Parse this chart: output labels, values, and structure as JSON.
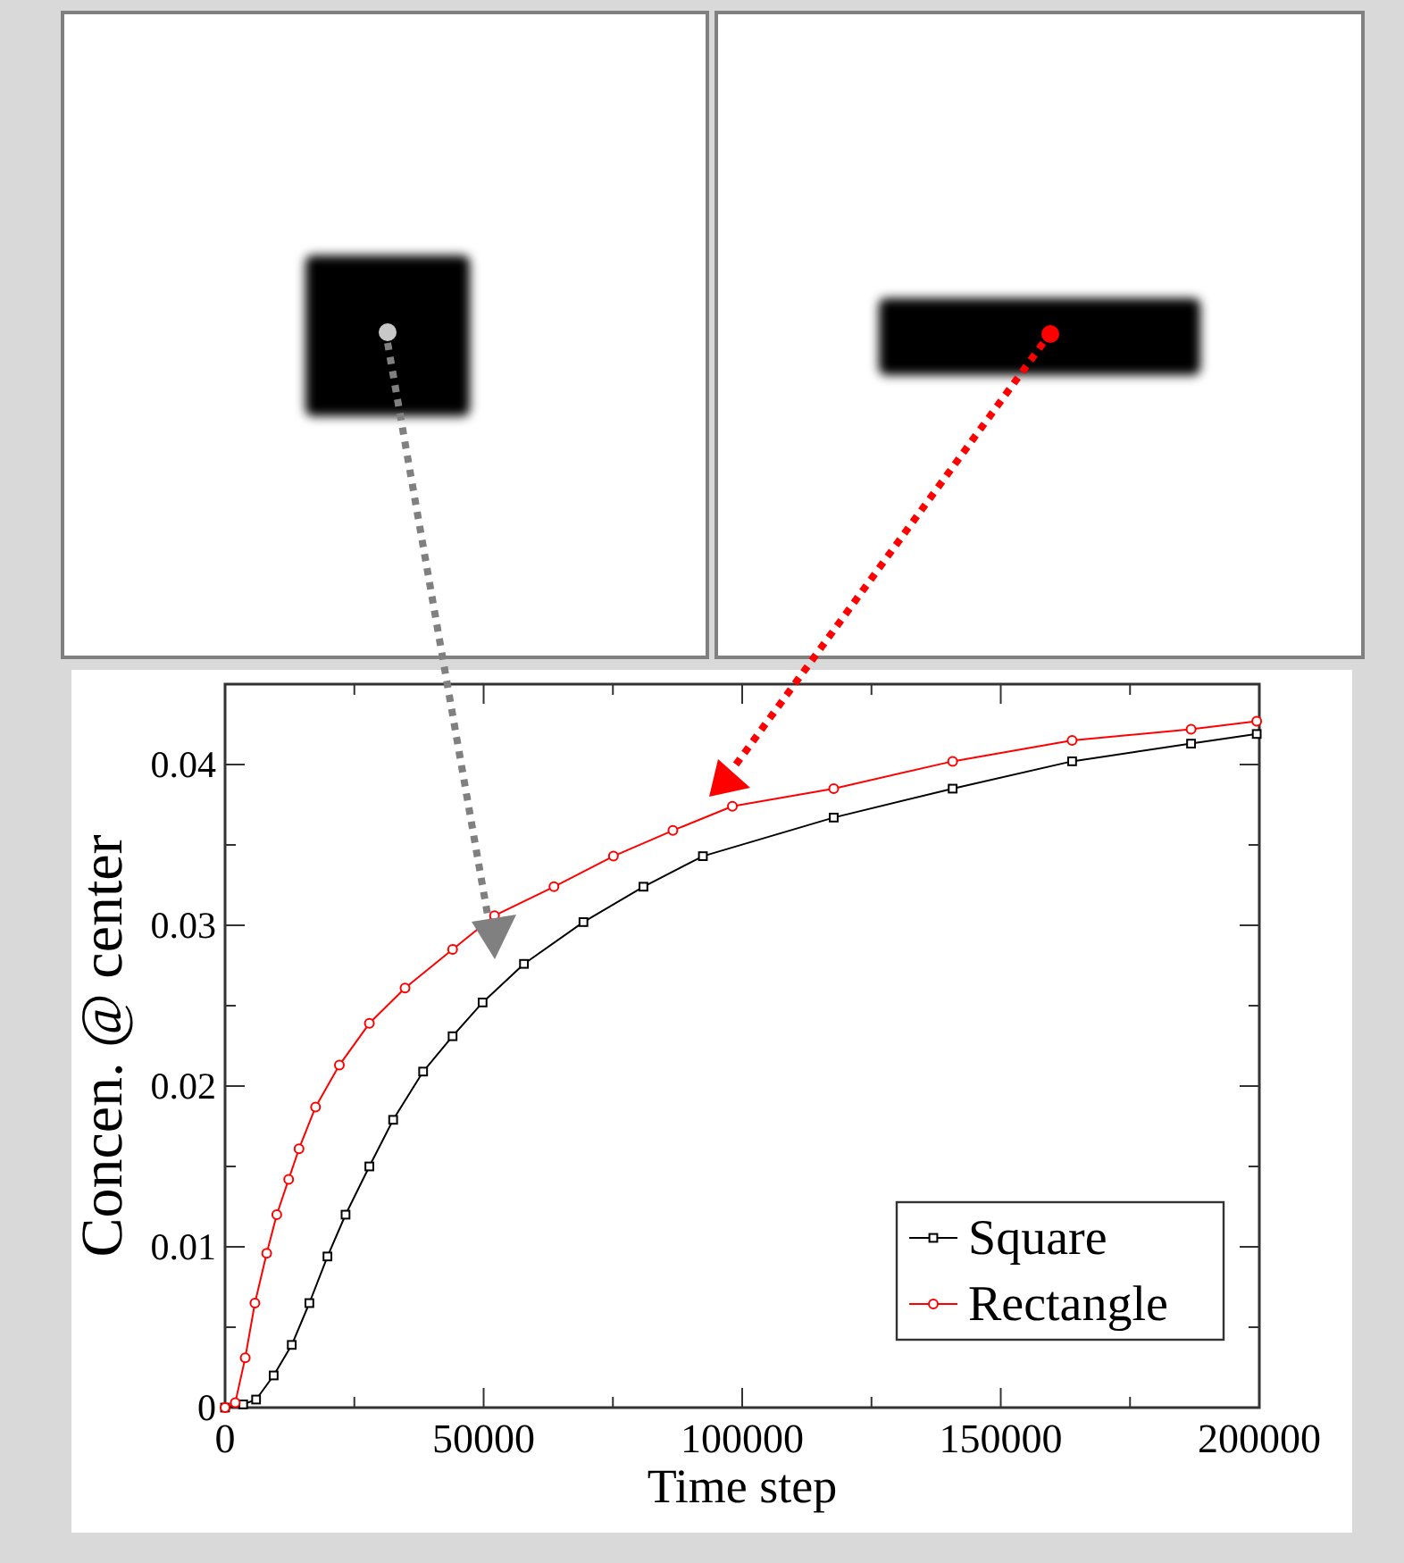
{
  "chart_data": {
    "type": "line",
    "xlabel": "Time step",
    "ylabel": "Concen. @ center",
    "xlim": [
      0,
      200000
    ],
    "ylim": [
      0,
      0.045
    ],
    "xticks": [
      0,
      {
        "value": 25000,
        "label": null
      },
      50000,
      {
        "value": 75000,
        "label": null
      },
      100000,
      {
        "value": 125000,
        "label": null
      },
      150000,
      {
        "value": 175000,
        "label": null
      },
      200000
    ],
    "yticks": [
      0,
      {
        "value": 0.005,
        "label": null
      },
      0.01,
      {
        "value": 0.015,
        "label": null
      },
      0.02,
      {
        "value": 0.025,
        "label": null
      },
      0.03,
      {
        "value": 0.035,
        "label": null
      },
      0.04
    ],
    "grid": false,
    "legend": "bottom right",
    "line_style": "solid",
    "series": [
      {
        "name": "Square",
        "color": "#000000",
        "marker": "square",
        "x": [
          0,
          3500,
          6000,
          9400,
          12900,
          16300,
          19800,
          23300,
          27900,
          32500,
          38300,
          44000,
          49800,
          57800,
          69300,
          80900,
          92400,
          117700,
          140700,
          163800,
          186800,
          199500
        ],
        "values": [
          0,
          0.0002,
          0.0005,
          0.002,
          0.0039,
          0.0065,
          0.0094,
          0.012,
          0.015,
          0.0179,
          0.0209,
          0.0231,
          0.0252,
          0.0276,
          0.0302,
          0.0324,
          0.0343,
          0.0367,
          0.0385,
          0.0402,
          0.0413,
          0.0419
        ]
      },
      {
        "name": "Rectangle",
        "color": "#ff0000",
        "marker": "circle",
        "x": [
          0,
          1970,
          3900,
          5770,
          8050,
          10000,
          12300,
          14300,
          17500,
          22100,
          27900,
          34800,
          44000,
          52100,
          63600,
          75100,
          86600,
          98100,
          117700,
          140700,
          163800,
          186800,
          199500
        ],
        "values": [
          0,
          0.0003,
          0.0031,
          0.0065,
          0.0096,
          0.012,
          0.0142,
          0.0161,
          0.0187,
          0.0213,
          0.0239,
          0.0261,
          0.0285,
          0.0306,
          0.0324,
          0.0343,
          0.0359,
          0.0374,
          0.0385,
          0.0402,
          0.0415,
          0.0422,
          0.0427
        ]
      }
    ]
  }
}
